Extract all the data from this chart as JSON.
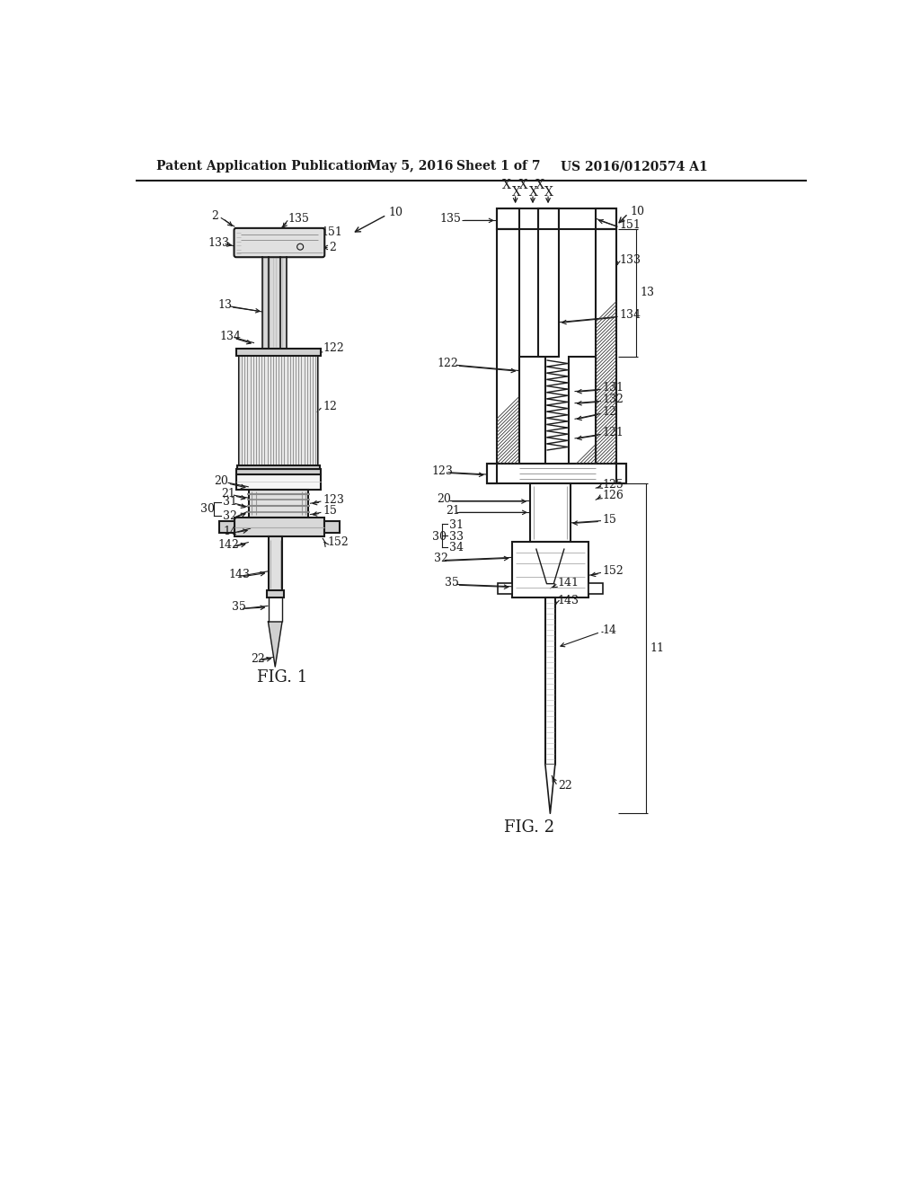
{
  "background_color": "#ffffff",
  "header_text": "Patent Application Publication",
  "header_date": "May 5, 2016",
  "header_sheet": "Sheet 1 of 7",
  "header_patent": "US 2016/0120574 A1",
  "fig1_label": "FIG. 1",
  "fig2_label": "FIG. 2",
  "line_color": "#1a1a1a",
  "font_size_header": 10,
  "font_size_label": 12,
  "font_size_number": 9
}
